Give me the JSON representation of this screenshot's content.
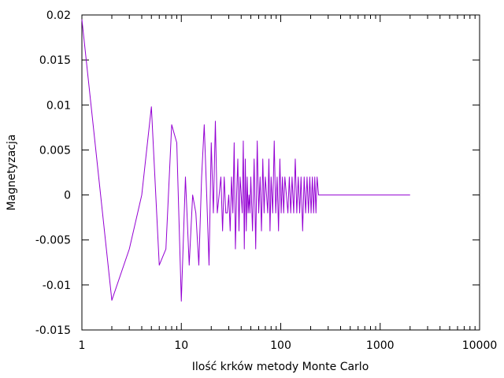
{
  "chart_data": {
    "type": "line",
    "title": "",
    "xlabel": "Ilość krków metody Monte Carlo",
    "ylabel": "Magnetyzacja",
    "xscale": "log",
    "xlim": [
      1,
      10000
    ],
    "ylim": [
      -0.015,
      0.02
    ],
    "grid": false,
    "legend": "none",
    "line_color": "#9400d3",
    "xticks": [
      1,
      10,
      100,
      1000,
      10000
    ],
    "xtick_labels": [
      "1",
      "10",
      "100",
      "1000",
      "10000"
    ],
    "yticks": [
      -0.015,
      -0.01,
      -0.005,
      0,
      0.005,
      0.01,
      0.015,
      0.02
    ],
    "ytick_labels": [
      "-0.015",
      "-0.01",
      "-0.005",
      "0",
      "0.005",
      "0.01",
      "0.015",
      "0.02"
    ],
    "series": [
      {
        "name": "",
        "x": [
          1,
          2,
          3,
          4,
          5,
          6,
          7,
          8,
          9,
          10,
          11,
          12,
          13,
          14,
          15,
          16,
          17,
          18,
          19,
          20,
          21,
          22,
          23,
          24,
          25,
          26,
          27,
          28,
          29,
          30,
          31,
          32,
          33,
          34,
          35,
          36,
          37,
          38,
          39,
          40,
          41,
          42,
          43,
          44,
          45,
          46,
          47,
          48,
          49,
          50,
          52,
          54,
          56,
          58,
          60,
          62,
          64,
          66,
          68,
          70,
          72,
          74,
          76,
          78,
          80,
          83,
          86,
          89,
          92,
          95,
          98,
          101,
          104,
          107,
          110,
          114,
          118,
          122,
          126,
          130,
          135,
          140,
          145,
          150,
          155,
          160,
          166,
          172,
          178,
          184,
          190,
          196,
          202,
          208,
          214,
          220,
          226,
          232,
          240,
          250,
          300,
          500,
          1000,
          2000
        ],
        "y": [
          0.0195,
          -0.0117,
          -0.006,
          0.0,
          0.0098,
          -0.0078,
          -0.006,
          0.0078,
          0.0058,
          -0.0118,
          0.002,
          -0.0078,
          0.0,
          -0.002,
          -0.0078,
          0.002,
          0.0078,
          0.0,
          -0.0078,
          0.0058,
          -0.002,
          0.0082,
          -0.002,
          0.0,
          0.002,
          -0.004,
          0.002,
          -0.002,
          -0.002,
          0.0,
          -0.004,
          0.002,
          -0.002,
          0.0058,
          -0.006,
          0.0,
          0.004,
          -0.004,
          0.002,
          0.0,
          -0.002,
          0.006,
          -0.006,
          0.004,
          -0.004,
          0.002,
          -0.002,
          0.0,
          -0.002,
          0.002,
          -0.004,
          0.004,
          -0.006,
          0.006,
          -0.002,
          0.002,
          -0.004,
          0.004,
          -0.002,
          0.002,
          0.0,
          -0.002,
          0.004,
          -0.004,
          0.002,
          -0.002,
          0.006,
          -0.002,
          0.002,
          -0.004,
          0.004,
          -0.002,
          0.002,
          -0.002,
          0.002,
          0.0,
          -0.002,
          0.002,
          -0.002,
          0.002,
          -0.002,
          0.004,
          -0.002,
          0.002,
          -0.002,
          0.002,
          -0.004,
          0.002,
          -0.002,
          0.002,
          -0.002,
          0.002,
          -0.002,
          0.002,
          -0.002,
          0.002,
          -0.002,
          0.002,
          0.0,
          0.0,
          0.0,
          0.0,
          0.0,
          0.0
        ]
      }
    ]
  }
}
